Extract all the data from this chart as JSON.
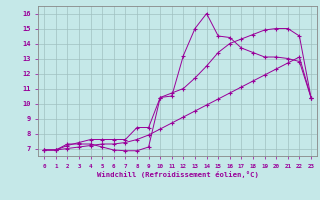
{
  "xlabel": "Windchill (Refroidissement éolien,°C)",
  "bg_color": "#c5e8e8",
  "line_color": "#990099",
  "grid_color": "#a0c0c0",
  "xlim": [
    -0.5,
    23.5
  ],
  "ylim": [
    6.5,
    16.5
  ],
  "xticks": [
    0,
    1,
    2,
    3,
    4,
    5,
    6,
    7,
    8,
    9,
    10,
    11,
    12,
    13,
    14,
    15,
    16,
    17,
    18,
    19,
    20,
    21,
    22,
    23
  ],
  "yticks": [
    7,
    8,
    9,
    10,
    11,
    12,
    13,
    14,
    15,
    16
  ],
  "curve1_x": [
    0,
    1,
    2,
    3,
    4,
    5,
    6,
    7,
    8,
    9,
    10,
    11,
    12,
    13,
    14,
    15,
    16,
    17,
    18,
    19,
    20,
    21,
    22,
    23
  ],
  "curve1_y": [
    6.9,
    6.9,
    7.3,
    7.3,
    7.3,
    7.1,
    6.9,
    6.85,
    6.85,
    7.1,
    10.4,
    10.5,
    13.2,
    15.0,
    16.0,
    14.5,
    14.4,
    13.7,
    13.4,
    13.1,
    13.1,
    13.0,
    12.8,
    10.4
  ],
  "curve2_x": [
    0,
    1,
    2,
    3,
    4,
    5,
    6,
    7,
    8,
    9,
    10,
    11,
    12,
    13,
    14,
    15,
    16,
    17,
    18,
    19,
    20,
    21,
    22,
    23
  ],
  "curve2_y": [
    6.9,
    6.9,
    7.2,
    7.4,
    7.6,
    7.6,
    7.6,
    7.6,
    8.4,
    8.4,
    10.4,
    10.7,
    11.0,
    11.7,
    12.5,
    13.4,
    14.0,
    14.3,
    14.6,
    14.9,
    15.0,
    15.0,
    14.5,
    10.4
  ],
  "curve3_x": [
    0,
    1,
    2,
    3,
    4,
    5,
    6,
    7,
    8,
    9,
    10,
    11,
    12,
    13,
    14,
    15,
    16,
    17,
    18,
    19,
    20,
    21,
    22,
    23
  ],
  "curve3_y": [
    6.9,
    6.9,
    7.0,
    7.1,
    7.2,
    7.3,
    7.3,
    7.4,
    7.6,
    7.9,
    8.3,
    8.7,
    9.1,
    9.5,
    9.9,
    10.3,
    10.7,
    11.1,
    11.5,
    11.9,
    12.3,
    12.7,
    13.1,
    10.4
  ]
}
